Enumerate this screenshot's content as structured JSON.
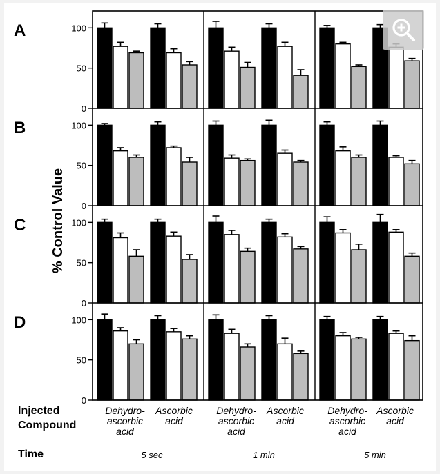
{
  "chart_data": {
    "type": "bar",
    "ylabel": "% Control Value",
    "ylim": [
      0,
      120
    ],
    "yticks": [
      0,
      50,
      100
    ],
    "bar_colors": [
      "#000000",
      "#ffffff",
      "#bdbdbd"
    ],
    "row_titles": {
      "compound_line1": "Injected",
      "compound_line2": "Compound",
      "time": "Time"
    },
    "compound_labels": [
      [
        "Dehydro-",
        "ascorbic",
        "acid"
      ],
      [
        "Ascorbic",
        "acid"
      ]
    ],
    "times": [
      "5 sec",
      "1 min",
      "5 min"
    ],
    "panels": [
      {
        "label": "A",
        "cells": [
          [
            [
              100,
              6
            ],
            [
              77,
              5
            ],
            [
              69,
              2
            ],
            [
              100,
              5
            ],
            [
              69,
              5
            ],
            [
              54,
              4
            ]
          ],
          [
            [
              100,
              8
            ],
            [
              71,
              5
            ],
            [
              51,
              6
            ],
            [
              100,
              5
            ],
            [
              77,
              5
            ],
            [
              41,
              7
            ]
          ],
          [
            [
              100,
              3
            ],
            [
              80,
              2
            ],
            [
              52,
              2
            ],
            [
              100,
              4
            ],
            [
              76,
              4
            ],
            [
              59,
              3
            ]
          ]
        ]
      },
      {
        "label": "B",
        "cells": [
          [
            [
              100,
              2
            ],
            [
              68,
              4
            ],
            [
              60,
              3
            ],
            [
              100,
              4
            ],
            [
              72,
              2
            ],
            [
              54,
              6
            ]
          ],
          [
            [
              100,
              5
            ],
            [
              59,
              4
            ],
            [
              56,
              2
            ],
            [
              100,
              6
            ],
            [
              65,
              4
            ],
            [
              54,
              2
            ]
          ],
          [
            [
              100,
              4
            ],
            [
              68,
              5
            ],
            [
              60,
              3
            ],
            [
              100,
              5
            ],
            [
              60,
              2
            ],
            [
              52,
              4
            ]
          ]
        ]
      },
      {
        "label": "C",
        "cells": [
          [
            [
              100,
              4
            ],
            [
              81,
              6
            ],
            [
              58,
              8
            ],
            [
              100,
              4
            ],
            [
              83,
              5
            ],
            [
              54,
              6
            ]
          ],
          [
            [
              100,
              8
            ],
            [
              85,
              5
            ],
            [
              64,
              4
            ],
            [
              100,
              4
            ],
            [
              82,
              4
            ],
            [
              67,
              3
            ]
          ],
          [
            [
              100,
              7
            ],
            [
              87,
              4
            ],
            [
              66,
              7
            ],
            [
              100,
              10
            ],
            [
              88,
              3
            ],
            [
              58,
              4
            ]
          ]
        ]
      },
      {
        "label": "D",
        "cells": [
          [
            [
              100,
              7
            ],
            [
              86,
              4
            ],
            [
              70,
              5
            ],
            [
              100,
              5
            ],
            [
              85,
              4
            ],
            [
              76,
              4
            ]
          ],
          [
            [
              100,
              6
            ],
            [
              83,
              5
            ],
            [
              66,
              4
            ],
            [
              100,
              5
            ],
            [
              70,
              7
            ],
            [
              58,
              3
            ]
          ],
          [
            [
              100,
              4
            ],
            [
              80,
              4
            ],
            [
              76,
              2
            ],
            [
              100,
              4
            ],
            [
              83,
              3
            ],
            [
              74,
              6
            ]
          ]
        ]
      }
    ]
  },
  "ui": {
    "zoom_icon": "zoom-in-icon"
  }
}
